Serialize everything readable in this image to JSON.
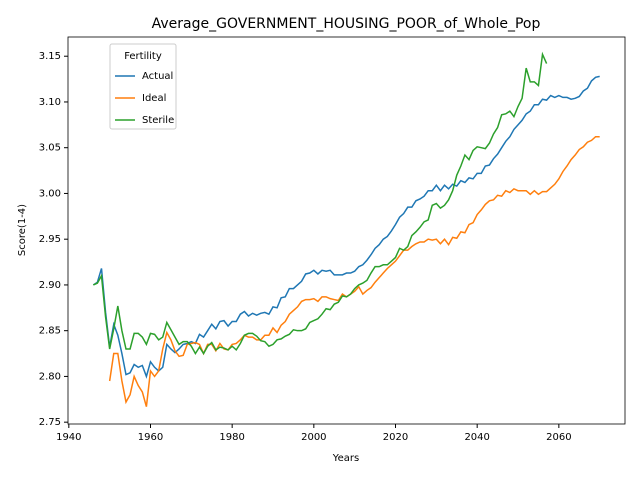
{
  "chart_data": {
    "type": "line",
    "title": "Average_GOVERNMENT_HOUSING_POOR_of_Whole_Pop",
    "xlabel": "Years",
    "ylabel": "Score(1-4)",
    "legend_title": "Fertility",
    "legend_loc": "upper left",
    "xlim": [
      1939.8,
      2076.2
    ],
    "ylim": [
      2.748,
      3.171
    ],
    "xticks": [
      1940,
      1960,
      1980,
      2000,
      2020,
      2040,
      2060
    ],
    "yticks": [
      2.75,
      {
        "value": 2.8,
        "label": "2.80"
      },
      2.85,
      {
        "value": 2.9,
        "label": "2.90"
      },
      2.95,
      {
        "value": 3.0,
        "label": "3.00"
      },
      3.05,
      {
        "value": 3.1,
        "label": "3.10"
      },
      3.15
    ],
    "x": [
      1946,
      1947,
      1948,
      1949,
      1950,
      1951,
      1952,
      1953,
      1954,
      1955,
      1956,
      1957,
      1958,
      1959,
      1960,
      1961,
      1962,
      1963,
      1964,
      1965,
      1966,
      1967,
      1968,
      1969,
      1970,
      1971,
      1972,
      1973,
      1974,
      1975,
      1976,
      1977,
      1978,
      1979,
      1980,
      1981,
      1982,
      1983,
      1984,
      1985,
      1986,
      1987,
      1988,
      1989,
      1990,
      1991,
      1992,
      1993,
      1994,
      1995,
      1996,
      1997,
      1998,
      1999,
      2000,
      2001,
      2002,
      2003,
      2004,
      2005,
      2006,
      2007,
      2008,
      2009,
      2010,
      2011,
      2012,
      2013,
      2014,
      2015,
      2016,
      2017,
      2018,
      2019,
      2020,
      2021,
      2022,
      2023,
      2024,
      2025,
      2026,
      2027,
      2028,
      2029,
      2030,
      2031,
      2032,
      2033,
      2034,
      2035,
      2036,
      2037,
      2038,
      2039,
      2040,
      2041,
      2042,
      2043,
      2044,
      2045,
      2046,
      2047,
      2048,
      2049,
      2050,
      2051,
      2052,
      2053,
      2054,
      2055,
      2056,
      2057,
      2058,
      2059,
      2060,
      2061,
      2062,
      2063,
      2064,
      2065,
      2066,
      2067,
      2068,
      2069,
      2070
    ],
    "series": [
      {
        "name": "Actual",
        "color": "#1f77b4",
        "values": [
          2.9,
          2.903,
          2.918,
          2.87,
          2.832,
          2.857,
          2.845,
          2.825,
          2.802,
          2.804,
          2.813,
          2.81,
          2.812,
          2.8,
          2.816,
          2.81,
          2.806,
          2.81,
          2.835,
          2.83,
          2.826,
          2.83,
          2.835,
          2.836,
          2.838,
          2.836,
          2.846,
          2.843,
          2.85,
          2.857,
          2.852,
          2.86,
          2.861,
          2.855,
          2.86,
          2.86,
          2.868,
          2.871,
          2.866,
          2.869,
          2.867,
          2.869,
          2.87,
          2.868,
          2.876,
          2.875,
          2.886,
          2.887,
          2.896,
          2.896,
          2.9,
          2.904,
          2.912,
          2.913,
          2.916,
          2.912,
          2.916,
          2.915,
          2.916,
          2.911,
          2.911,
          2.911,
          2.913,
          2.913,
          2.915,
          2.92,
          2.922,
          2.927,
          2.933,
          2.94,
          2.944,
          2.95,
          2.953,
          2.959,
          2.966,
          2.974,
          2.978,
          2.985,
          2.985,
          2.992,
          2.994,
          2.997,
          3.003,
          3.003,
          3.009,
          3.003,
          3.009,
          3.005,
          3.01,
          3.008,
          3.014,
          3.012,
          3.017,
          3.016,
          3.022,
          3.022,
          3.03,
          3.031,
          3.038,
          3.043,
          3.05,
          3.057,
          3.062,
          3.07,
          3.075,
          3.08,
          3.087,
          3.09,
          3.097,
          3.097,
          3.103,
          3.102,
          3.107,
          3.105,
          3.107,
          3.105,
          3.105,
          3.103,
          3.104,
          3.106,
          3.112,
          3.115,
          3.123,
          3.127,
          3.128
        ]
      },
      {
        "name": "Ideal",
        "color": "#ff7f0e",
        "values": [
          null,
          null,
          null,
          null,
          2.795,
          2.825,
          2.825,
          2.795,
          2.772,
          2.78,
          2.8,
          2.79,
          2.783,
          2.767,
          2.806,
          2.8,
          2.806,
          2.83,
          2.848,
          2.84,
          2.828,
          2.822,
          2.823,
          2.835,
          2.836,
          2.837,
          2.835,
          2.825,
          2.835,
          2.835,
          2.828,
          2.836,
          2.83,
          2.829,
          2.835,
          2.836,
          2.84,
          2.845,
          2.843,
          2.843,
          2.84,
          2.84,
          2.845,
          2.845,
          2.853,
          2.848,
          2.856,
          2.86,
          2.868,
          2.872,
          2.876,
          2.882,
          2.884,
          2.884,
          2.885,
          2.882,
          2.887,
          2.887,
          2.885,
          2.884,
          2.883,
          2.89,
          2.887,
          2.89,
          2.893,
          2.898,
          2.89,
          2.894,
          2.897,
          2.903,
          2.908,
          2.913,
          2.918,
          2.922,
          2.926,
          2.932,
          2.938,
          2.938,
          2.942,
          2.945,
          2.947,
          2.947,
          2.95,
          2.949,
          2.95,
          2.945,
          2.95,
          2.944,
          2.952,
          2.951,
          2.958,
          2.957,
          2.966,
          2.968,
          2.977,
          2.982,
          2.988,
          2.992,
          2.993,
          2.998,
          2.997,
          3.003,
          3.001,
          3.005,
          3.003,
          3.003,
          3.003,
          2.999,
          3.003,
          2.999,
          3.002,
          3.002,
          3.006,
          3.01,
          3.016,
          3.024,
          3.03,
          3.037,
          3.042,
          3.048,
          3.051,
          3.056,
          3.058,
          3.062,
          3.062
        ]
      },
      {
        "name": "Sterile",
        "color": "#2ca02c",
        "values": [
          2.9,
          2.902,
          2.91,
          2.865,
          2.83,
          2.852,
          2.877,
          2.85,
          2.83,
          2.83,
          2.847,
          2.847,
          2.843,
          2.835,
          2.847,
          2.846,
          2.84,
          2.843,
          2.859,
          2.851,
          2.843,
          2.835,
          2.838,
          2.838,
          2.833,
          2.825,
          2.832,
          2.825,
          2.833,
          2.837,
          2.829,
          2.832,
          2.831,
          2.829,
          2.833,
          2.829,
          2.836,
          2.845,
          2.847,
          2.847,
          2.844,
          2.839,
          2.838,
          2.833,
          2.835,
          2.84,
          2.841,
          2.844,
          2.846,
          2.851,
          2.85,
          2.85,
          2.852,
          2.859,
          2.861,
          2.863,
          2.868,
          2.874,
          2.873,
          2.879,
          2.881,
          2.888,
          2.887,
          2.89,
          2.896,
          2.9,
          2.902,
          2.905,
          2.913,
          2.92,
          2.92,
          2.922,
          2.922,
          2.926,
          2.93,
          2.94,
          2.938,
          2.942,
          2.954,
          2.958,
          2.963,
          2.969,
          2.971,
          2.987,
          2.989,
          2.984,
          2.987,
          2.993,
          3.003,
          3.02,
          3.03,
          3.042,
          3.037,
          3.047,
          3.051,
          3.05,
          3.049,
          3.055,
          3.065,
          3.072,
          3.086,
          3.087,
          3.09,
          3.084,
          3.095,
          3.104,
          3.137,
          3.122,
          3.122,
          3.118,
          3.152,
          3.142,
          null,
          null,
          null,
          null,
          null,
          null,
          null,
          null,
          null,
          null,
          null,
          null,
          null
        ]
      }
    ]
  }
}
